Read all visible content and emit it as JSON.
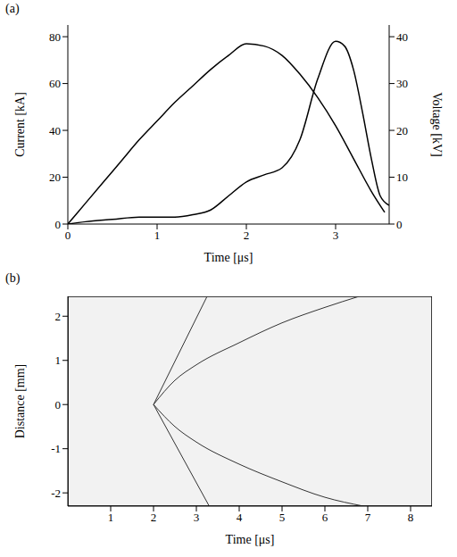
{
  "chart_data": [
    {
      "type": "line",
      "panel": "(a)",
      "x_label": "Time [μs]",
      "y_label": "Current [kA]",
      "y2_label": "Voltage [kV]",
      "xlim": [
        0,
        3.6
      ],
      "xticks": [
        0,
        1,
        2,
        3
      ],
      "ylim": [
        0,
        85
      ],
      "yticks": [
        0,
        20,
        40,
        60,
        80
      ],
      "y2lim": [
        0,
        42.5
      ],
      "y2ticks": [
        0,
        10,
        20,
        30,
        40
      ],
      "series": [
        {
          "color": "#000000",
          "x": [
            0,
            0.2,
            0.4,
            0.6,
            0.8,
            1.0,
            1.2,
            1.4,
            1.6,
            1.8,
            2.0,
            2.2,
            2.4,
            2.6,
            2.8,
            3.0,
            3.2,
            3.4,
            3.55
          ],
          "values": [
            0,
            9,
            18,
            27,
            36,
            44,
            52,
            59,
            66,
            72,
            77,
            76,
            72,
            64,
            54,
            42,
            28,
            14,
            5
          ]
        },
        {
          "color": "#000000",
          "axis": "y2",
          "x": [
            0,
            0.2,
            0.5,
            0.8,
            1.0,
            1.2,
            1.4,
            1.6,
            1.8,
            2.0,
            2.2,
            2.4,
            2.6,
            2.8,
            3.0,
            3.1,
            3.2,
            3.3,
            3.4,
            3.5,
            3.6
          ],
          "values": [
            0,
            0.5,
            1,
            1.5,
            1.5,
            1.5,
            2,
            3,
            6,
            9,
            10.5,
            12,
            18,
            31,
            39,
            38,
            33,
            24,
            14,
            6,
            4
          ]
        }
      ]
    },
    {
      "type": "line",
      "panel": "(b)",
      "x_label": "Time [μs]",
      "y_label": "Distance [mm]",
      "xlim": [
        0,
        8.5
      ],
      "xticks": [
        1,
        2,
        3,
        4,
        5,
        6,
        7,
        8
      ],
      "ylim": [
        -2.3,
        2.45
      ],
      "yticks": [
        -2,
        -1,
        0,
        1,
        2
      ],
      "series": [
        {
          "color": "#333333",
          "x": [
            2,
            3.25
          ],
          "values": [
            0,
            2.45
          ]
        },
        {
          "color": "#333333",
          "x": [
            2,
            3.3
          ],
          "values": [
            0,
            -2.3
          ]
        },
        {
          "color": "#333333",
          "x": [
            2,
            2.5,
            3,
            4,
            5,
            6,
            6.8
          ],
          "values": [
            0,
            0.55,
            0.9,
            1.4,
            1.85,
            2.2,
            2.45
          ]
        },
        {
          "color": "#333333",
          "x": [
            2,
            2.5,
            3,
            4,
            5,
            6,
            6.9
          ],
          "values": [
            0,
            -0.5,
            -0.85,
            -1.35,
            -1.75,
            -2.1,
            -2.3
          ]
        }
      ]
    }
  ]
}
